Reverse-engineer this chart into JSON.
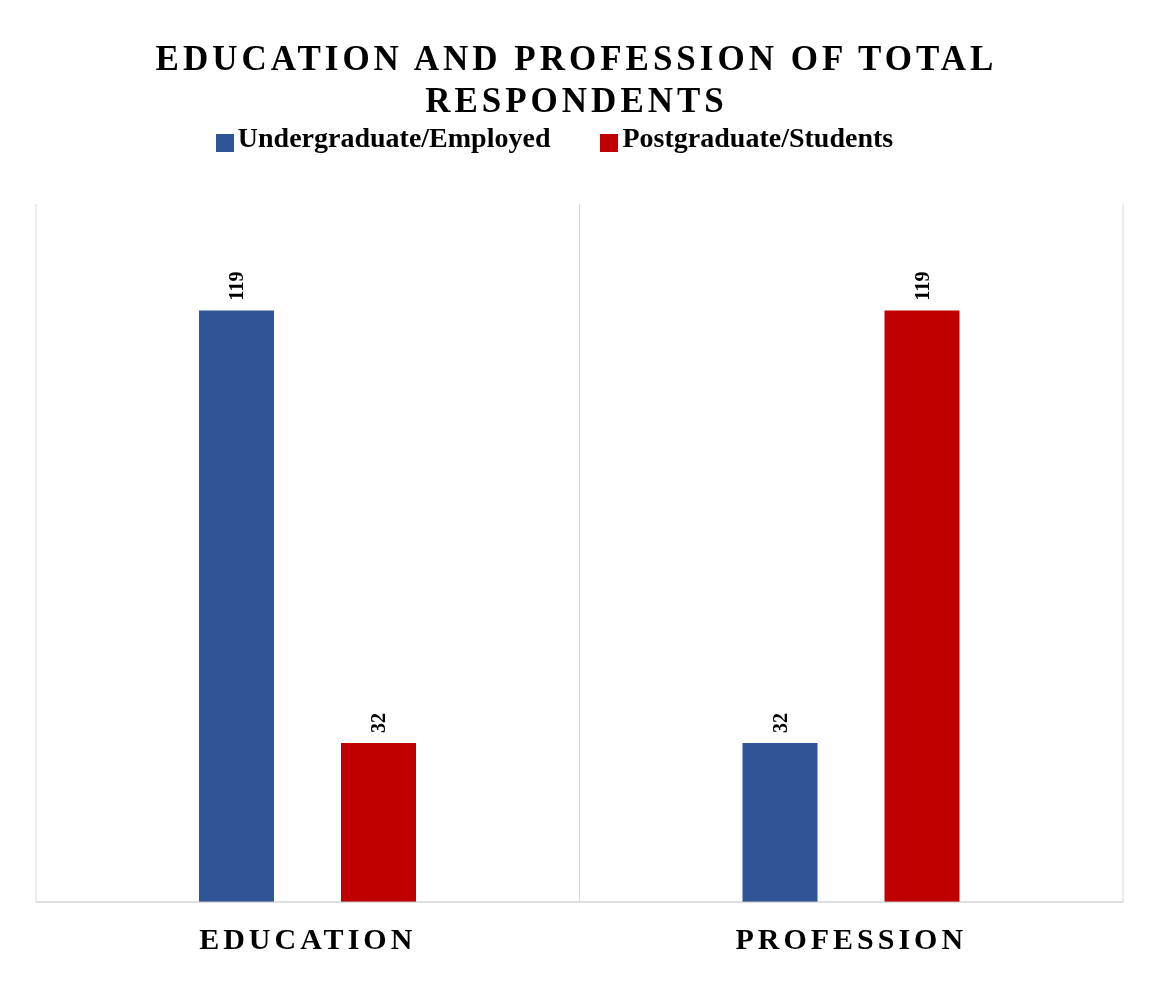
{
  "chart_data": {
    "type": "bar",
    "title": "EDUCATION AND PROFESSION OF TOTAL RESPONDENTS",
    "categories": [
      "EDUCATION",
      "PROFESSION"
    ],
    "series": [
      {
        "name": "Undergraduate/Employed",
        "color": "#2f5597",
        "values": [
          119,
          32
        ]
      },
      {
        "name": "Postgraduate/Students",
        "color": "#c00000",
        "values": [
          32,
          119
        ]
      }
    ],
    "data_labels": true,
    "legend": "top",
    "grid": "x"
  }
}
